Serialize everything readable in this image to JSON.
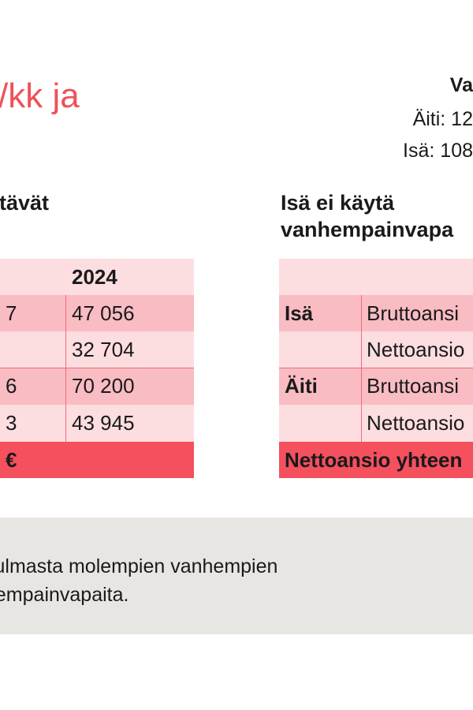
{
  "headline": "/kk ja",
  "right_header": {
    "title": "Va",
    "line1": "Äiti: 12",
    "line2": "Isä: 108"
  },
  "left_section": {
    "title": "ttävät",
    "header": [
      "",
      "2024"
    ],
    "rows": [
      [
        "7",
        "47 056"
      ],
      [
        "",
        "32 704"
      ],
      [
        "6",
        "70 200"
      ],
      [
        "3",
        "43 945"
      ]
    ],
    "footer": "€"
  },
  "right_section": {
    "title_line1": "Isä ei käytä",
    "title_line2": "vanhempainvapa",
    "rows": [
      [
        "Isä",
        "Bruttoansi"
      ],
      [
        "",
        "Nettoansio"
      ],
      [
        "Äiti",
        "Bruttoansi"
      ],
      [
        "",
        "Nettoansio"
      ]
    ],
    "footer": "Nettoansio yhteen"
  },
  "note": {
    "line1": "kulmasta molempien vanhempien",
    "line2": "hempainvapaita."
  },
  "colors": {
    "accent": "#f0505a",
    "light_row": "#fcdde0",
    "mid_row": "#f9bcc3",
    "total_row": "#f4505e",
    "note_bg": "#e8e6e2"
  }
}
